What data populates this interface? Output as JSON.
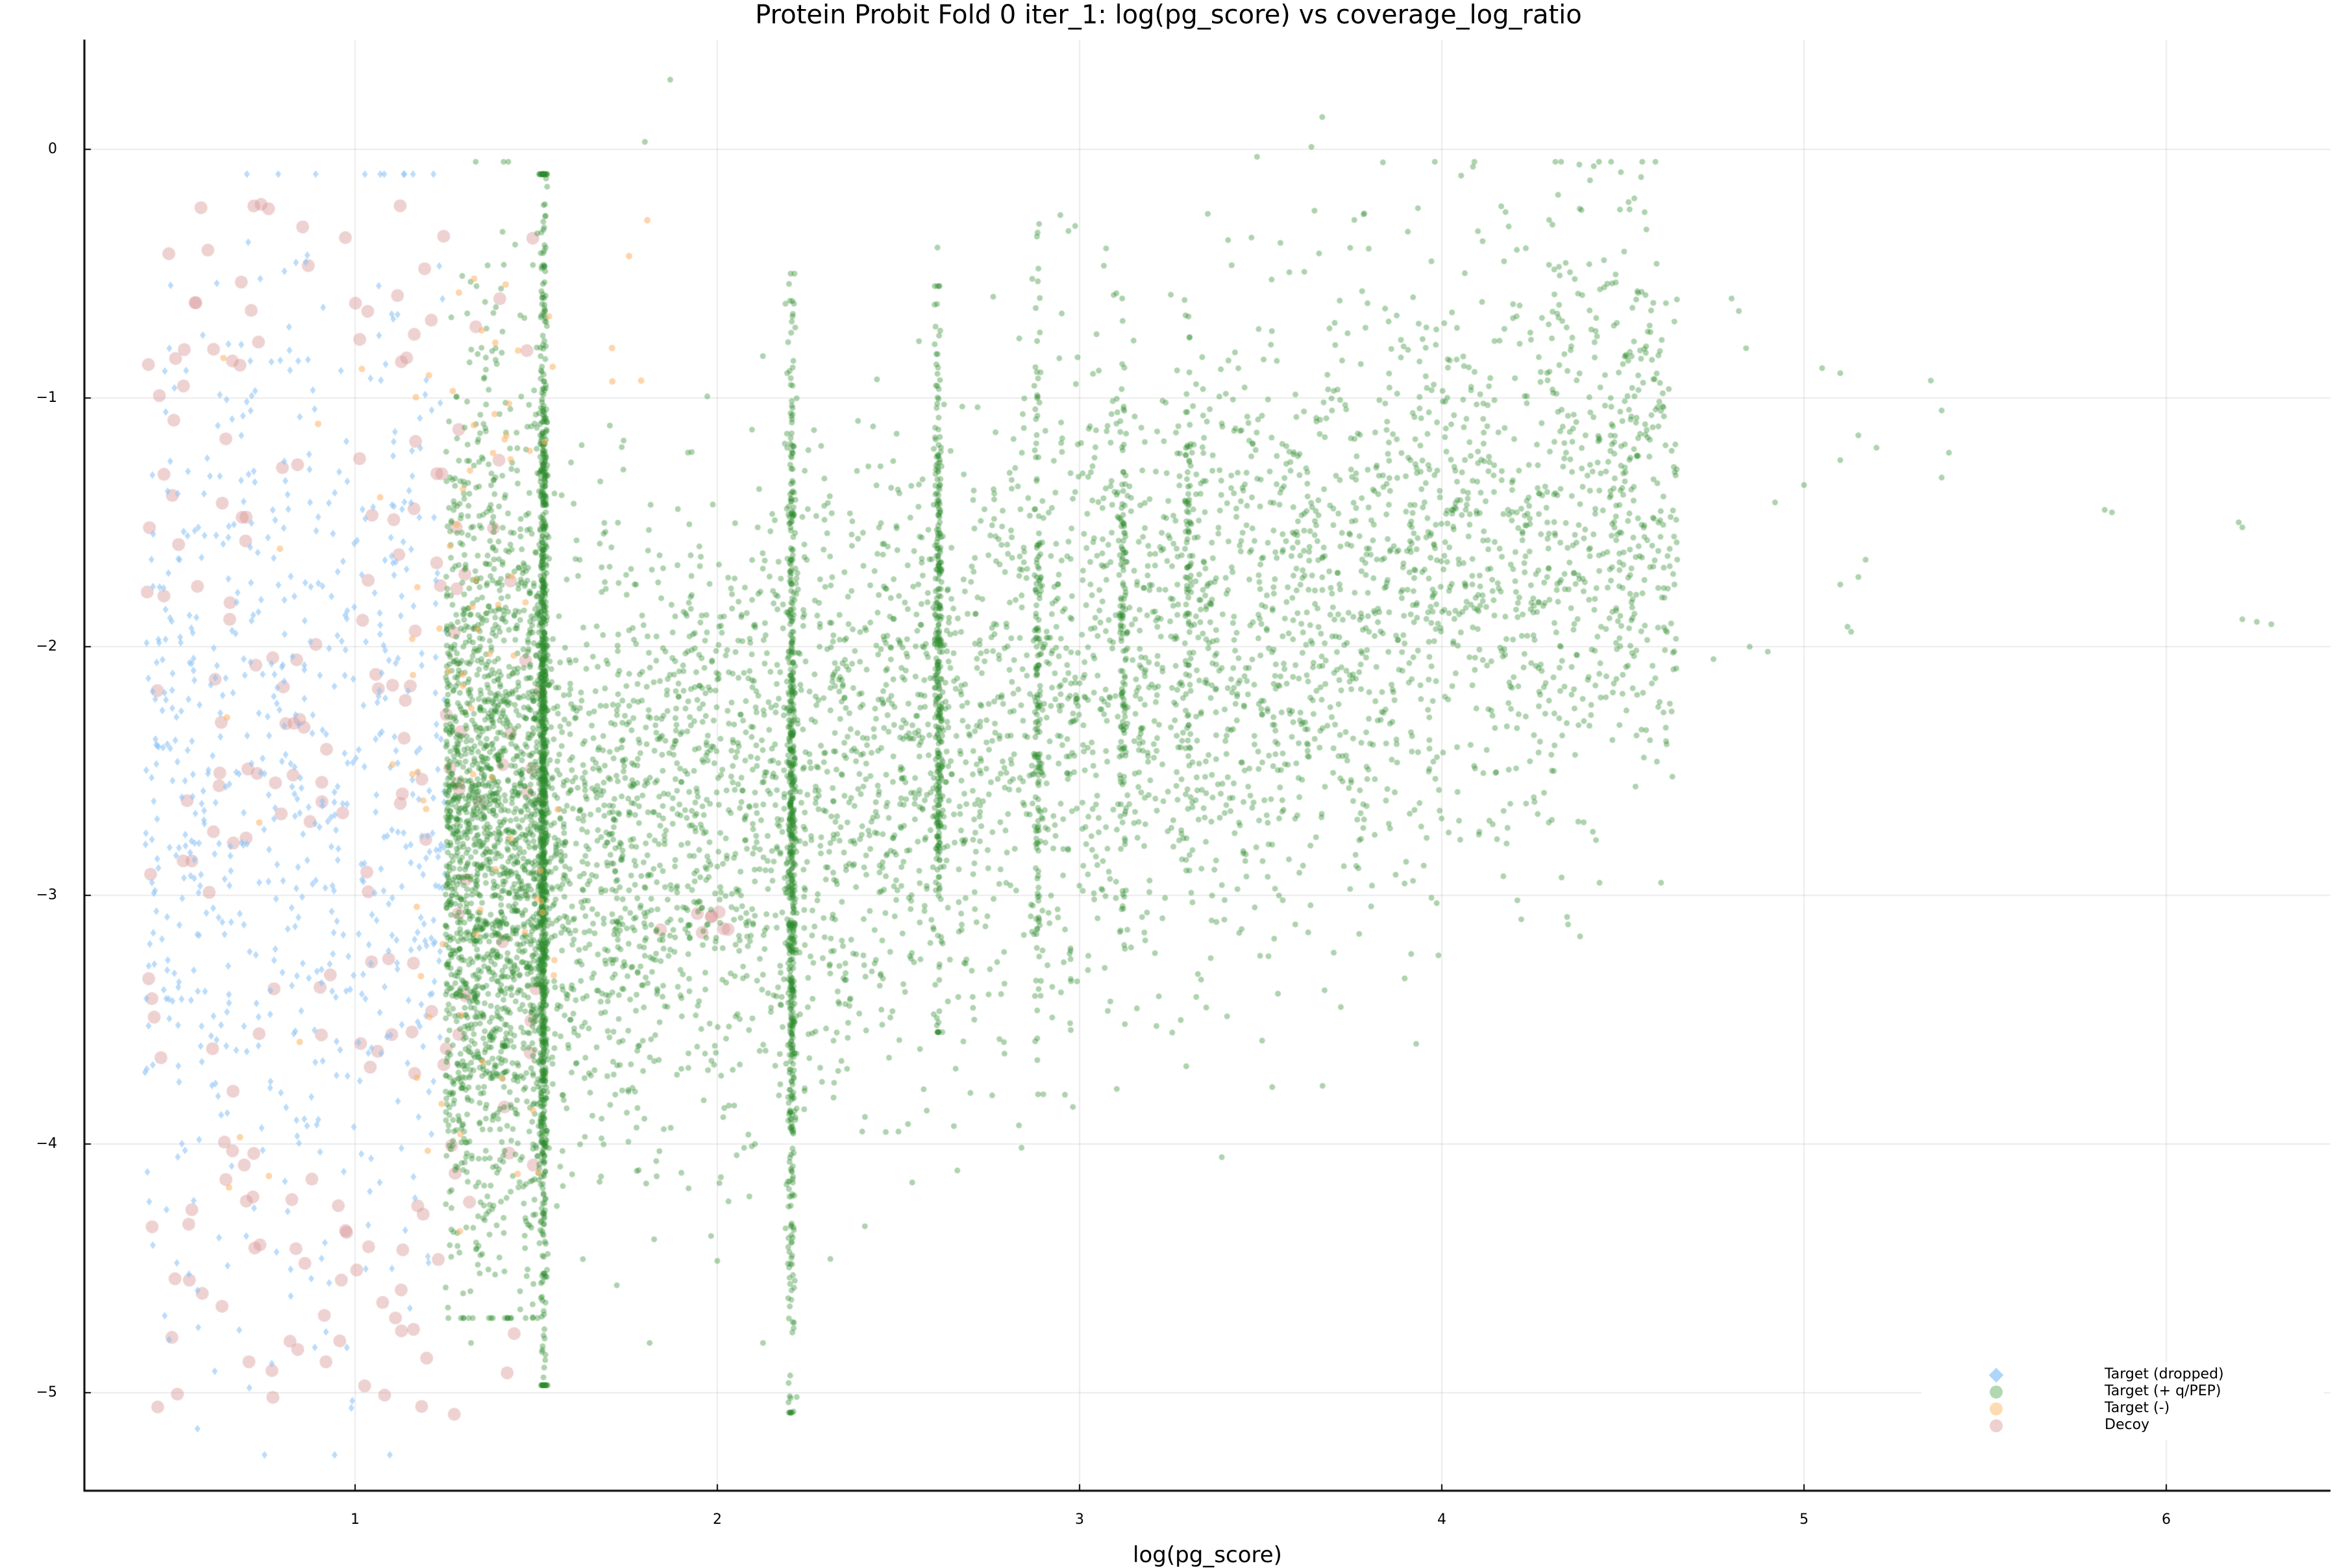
{
  "chart_data": {
    "type": "scatter",
    "title": "Protein Probit Fold 0 iter_1: log(pg_score) vs coverage_log_ratio",
    "xlabel": "log(pg_score)",
    "ylabel": "",
    "xlim": [
      0.25,
      6.45
    ],
    "ylim": [
      -5.39,
      0.44
    ],
    "xticks": [
      1,
      2,
      3,
      4,
      5,
      6
    ],
    "yticks": [
      0,
      -1,
      -2,
      -3,
      -4,
      -5
    ],
    "xtick_labels": [
      "1",
      "2",
      "3",
      "4",
      "5",
      "6"
    ],
    "ytick_labels": [
      "0",
      "−1",
      "−2",
      "−3",
      "−4",
      "−5"
    ],
    "grid": true,
    "legend_position": "bottom-right",
    "series": [
      {
        "name": "Target (dropped)",
        "marker": "diamond",
        "color": "#8fc4f5",
        "alpha": 0.6,
        "size": 10,
        "count": 700,
        "region": {
          "x": [
            0.42,
            1.25
          ],
          "y": [
            -5.25,
            -0.1
          ]
        },
        "description": "scattered low-score targets, x < ~1.25"
      },
      {
        "name": "Target (+ q/PEP)",
        "marker": "circle",
        "color": "#2e8b2e",
        "alpha": 0.38,
        "size": 9,
        "count": 9000,
        "description": "bulk of points; dense vertical stripes at x≈1.52, 2.2, 2.6, 2.88, 3.12, 3.3; cloud trends upward from (1.5,-3) to (4.5,-1.5); sparse outliers to x≈6.3",
        "stripes": [
          {
            "x": 1.52,
            "y": [
              -4.97,
              -0.1
            ],
            "n": 1100
          },
          {
            "x": 2.205,
            "y": [
              -5.08,
              -0.5
            ],
            "n": 600
          },
          {
            "x": 2.61,
            "y": [
              -3.55,
              -0.55
            ],
            "n": 320
          },
          {
            "x": 2.885,
            "y": [
              -3.8,
              -0.3
            ],
            "n": 150
          },
          {
            "x": 3.12,
            "y": [
              -3.2,
              -0.6
            ],
            "n": 130
          },
          {
            "x": 3.3,
            "y": [
              -2.9,
              -0.6
            ],
            "n": 90
          }
        ],
        "outliers": [
          [
            1.87,
            0.28
          ],
          [
            3.67,
            0.13
          ],
          [
            3.64,
            0.01
          ],
          [
            3.49,
            -0.03
          ],
          [
            1.8,
            0.03
          ],
          [
            4.8,
            -0.6
          ],
          [
            4.82,
            -0.65
          ],
          [
            4.84,
            -0.8
          ],
          [
            5.05,
            -0.88
          ],
          [
            5.1,
            -0.9
          ],
          [
            5.35,
            -0.93
          ],
          [
            5.38,
            -1.05
          ],
          [
            5.15,
            -1.15
          ],
          [
            5.2,
            -1.2
          ],
          [
            5.4,
            -1.22
          ],
          [
            5.1,
            -1.25
          ],
          [
            5.38,
            -1.32
          ],
          [
            5.0,
            -1.35
          ],
          [
            4.92,
            -1.42
          ],
          [
            5.83,
            -1.45
          ],
          [
            5.85,
            -1.46
          ],
          [
            6.2,
            -1.5
          ],
          [
            6.21,
            -1.52
          ],
          [
            5.17,
            -1.65
          ],
          [
            5.15,
            -1.72
          ],
          [
            5.1,
            -1.75
          ],
          [
            5.12,
            -1.92
          ],
          [
            5.13,
            -1.94
          ],
          [
            6.21,
            -1.89
          ],
          [
            6.25,
            -1.9
          ],
          [
            6.29,
            -1.91
          ],
          [
            4.85,
            -2.0
          ],
          [
            4.9,
            -2.02
          ],
          [
            4.75,
            -2.05
          ],
          [
            2.0,
            -4.47
          ],
          [
            2.4,
            -3.95
          ],
          [
            2.5,
            -3.95
          ],
          [
            2.9,
            -3.8
          ]
        ]
      },
      {
        "name": "Target (-)",
        "marker": "circle",
        "color": "#fdb366",
        "alpha": 0.55,
        "size": 10,
        "count": 90,
        "region": {
          "x": [
            0.6,
            1.95
          ],
          "y": [
            -4.5,
            -0.1
          ]
        },
        "description": "few orange points mostly around x 1.2-1.55"
      },
      {
        "name": "Decoy",
        "marker": "circle",
        "color": "#d99a9a",
        "alpha": 0.45,
        "size": 20,
        "count": 230,
        "region": {
          "x": [
            0.42,
            1.55
          ],
          "y": [
            -5.12,
            -0.2
          ]
        },
        "description": "larger pink circles, mostly x < 1.55, a few near x 1.8-2.05 around y -3.1"
      }
    ]
  },
  "legend": {
    "items": [
      {
        "label": "Target (dropped)",
        "color": "#aed6fa",
        "shape": "diamond"
      },
      {
        "label": "Target (+ q/PEP)",
        "color": "#b2d8b2",
        "shape": "circle"
      },
      {
        "label": "Target (-)",
        "color": "#fddcb2",
        "shape": "circle"
      },
      {
        "label": "Decoy",
        "color": "#eed0d0",
        "shape": "circle"
      }
    ]
  }
}
